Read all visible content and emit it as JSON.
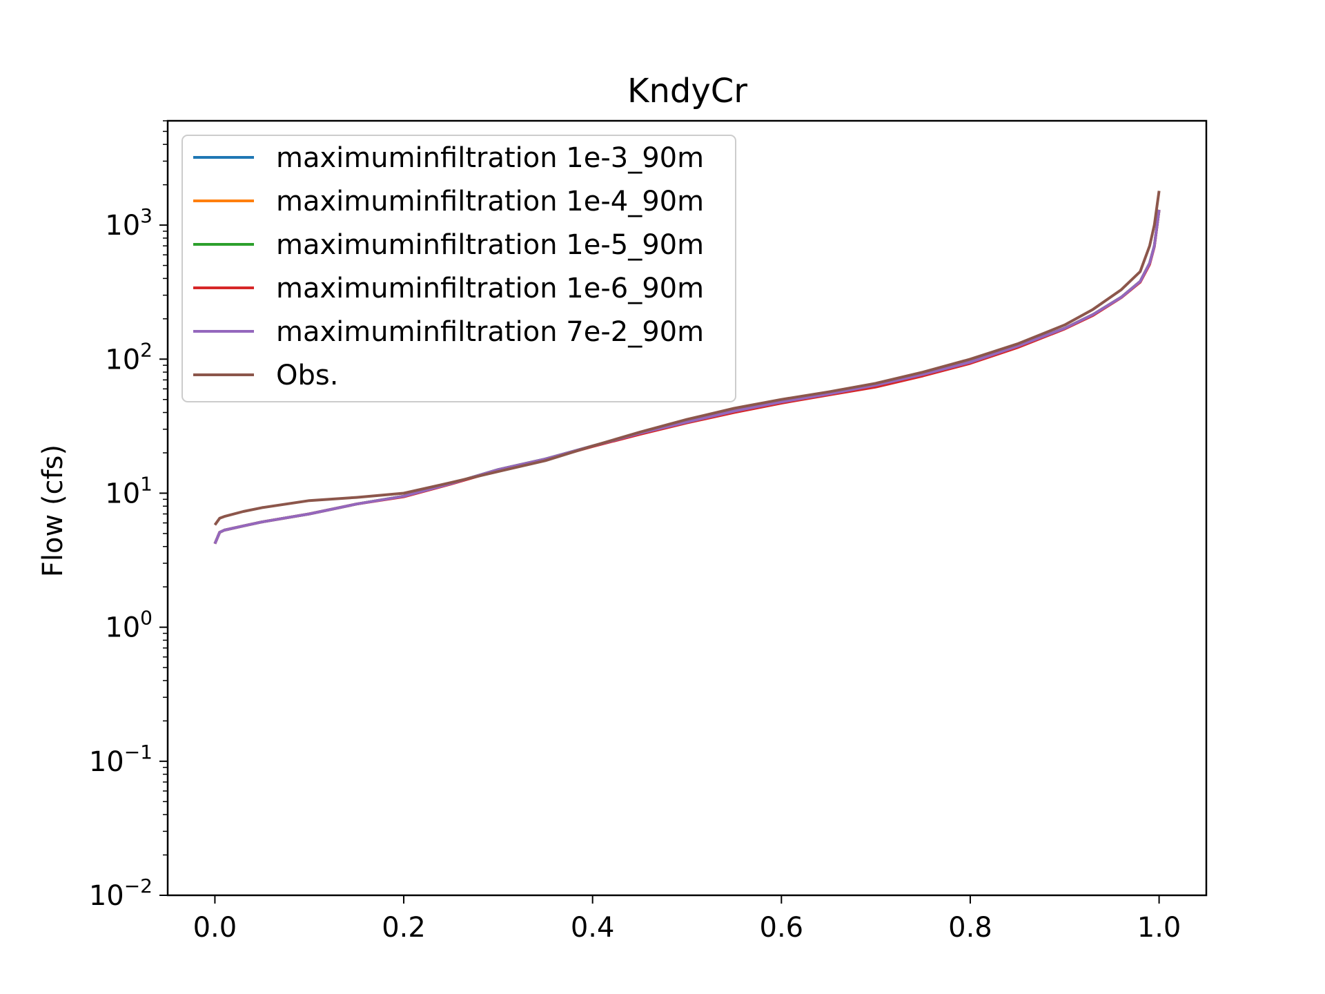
{
  "chart_data": {
    "type": "line",
    "title": "KndyCr",
    "xlabel": "",
    "ylabel": "Flow (cfs)",
    "yscale": "log",
    "xlim": [
      -0.05,
      1.05
    ],
    "ylim": [
      0.01,
      6000
    ],
    "xticks": [
      {
        "value": 0.0,
        "label": "0.0"
      },
      {
        "value": 0.2,
        "label": "0.2"
      },
      {
        "value": 0.4,
        "label": "0.4"
      },
      {
        "value": 0.6,
        "label": "0.6"
      },
      {
        "value": 0.8,
        "label": "0.8"
      },
      {
        "value": 1.0,
        "label": "1.0"
      }
    ],
    "yticks": [
      {
        "value": 0.01,
        "base": "10",
        "exp": "−2"
      },
      {
        "value": 0.1,
        "base": "10",
        "exp": "−1"
      },
      {
        "value": 1,
        "base": "10",
        "exp": "0"
      },
      {
        "value": 10,
        "base": "10",
        "exp": "1"
      },
      {
        "value": 100,
        "base": "10",
        "exp": "2"
      },
      {
        "value": 1000,
        "base": "10",
        "exp": "3"
      }
    ],
    "grid": false,
    "legend_position": "upper-left",
    "series": [
      {
        "name": "maximuminfiltration 1e-3_90m",
        "color": "#1f77b4",
        "x": [
          0,
          0.005,
          0.01,
          0.03,
          0.05,
          0.1,
          0.15,
          0.2,
          0.25,
          0.3,
          0.35,
          0.4,
          0.45,
          0.5,
          0.55,
          0.6,
          0.65,
          0.7,
          0.75,
          0.8,
          0.85,
          0.9,
          0.93,
          0.96,
          0.98,
          0.99,
          0.995,
          1.0
        ],
        "y": [
          4.2,
          5.1,
          5.3,
          5.7,
          6.1,
          7.0,
          8.3,
          9.5,
          11.8,
          15.0,
          18.0,
          22.5,
          28.0,
          34.0,
          41.0,
          48.0,
          55.0,
          64.0,
          77.0,
          95.0,
          125.0,
          170.0,
          215.0,
          290.0,
          380.0,
          520.0,
          700.0,
          1300.0
        ]
      },
      {
        "name": "maximuminfiltration 1e-4_90m",
        "color": "#ff7f0e",
        "x": [
          0,
          0.005,
          0.01,
          0.03,
          0.05,
          0.1,
          0.15,
          0.2,
          0.25,
          0.3,
          0.35,
          0.4,
          0.45,
          0.5,
          0.55,
          0.6,
          0.65,
          0.7,
          0.75,
          0.8,
          0.85,
          0.9,
          0.93,
          0.96,
          0.98,
          0.99,
          0.995,
          1.0
        ],
        "y": [
          4.2,
          5.1,
          5.3,
          5.7,
          6.1,
          7.0,
          8.3,
          9.5,
          11.8,
          15.0,
          18.0,
          22.5,
          28.0,
          34.0,
          41.0,
          48.0,
          55.0,
          64.0,
          77.0,
          95.0,
          125.0,
          170.0,
          215.0,
          290.0,
          380.0,
          520.0,
          700.0,
          1300.0
        ]
      },
      {
        "name": "maximuminfiltration 1e-5_90m",
        "color": "#2ca02c",
        "x": [
          0,
          0.005,
          0.01,
          0.03,
          0.05,
          0.1,
          0.15,
          0.2,
          0.25,
          0.3,
          0.35,
          0.4,
          0.45,
          0.5,
          0.55,
          0.6,
          0.65,
          0.7,
          0.75,
          0.8,
          0.85,
          0.9,
          0.93,
          0.96,
          0.98,
          0.99,
          0.995,
          1.0
        ],
        "y": [
          4.2,
          5.1,
          5.3,
          5.7,
          6.1,
          7.0,
          8.3,
          9.5,
          11.8,
          15.0,
          18.0,
          22.5,
          28.0,
          34.0,
          41.0,
          48.0,
          55.0,
          64.0,
          77.0,
          95.0,
          125.0,
          170.0,
          215.0,
          290.0,
          380.0,
          520.0,
          700.0,
          1300.0
        ]
      },
      {
        "name": "maximuminfiltration 1e-6_90m",
        "color": "#d62728",
        "x": [
          0,
          0.005,
          0.01,
          0.03,
          0.05,
          0.1,
          0.15,
          0.2,
          0.25,
          0.3,
          0.35,
          0.4,
          0.45,
          0.5,
          0.55,
          0.6,
          0.65,
          0.7,
          0.75,
          0.8,
          0.85,
          0.9,
          0.93,
          0.96,
          0.98,
          0.99,
          0.995,
          1.0
        ],
        "y": [
          4.2,
          5.1,
          5.3,
          5.7,
          6.1,
          7.0,
          8.3,
          9.4,
          11.7,
          14.8,
          17.8,
          22.3,
          27.5,
          33.5,
          40.0,
          47.0,
          54.0,
          62.0,
          75.0,
          93.0,
          122.0,
          168.0,
          212.0,
          288.0,
          375.0,
          510.0,
          690.0,
          1300.0
        ]
      },
      {
        "name": "maximuminfiltration 7e-2_90m",
        "color": "#9467bd",
        "x": [
          0,
          0.005,
          0.01,
          0.03,
          0.05,
          0.1,
          0.15,
          0.2,
          0.25,
          0.3,
          0.35,
          0.4,
          0.45,
          0.5,
          0.55,
          0.6,
          0.65,
          0.7,
          0.75,
          0.8,
          0.85,
          0.9,
          0.93,
          0.96,
          0.98,
          0.99,
          0.995,
          1.0
        ],
        "y": [
          4.2,
          5.1,
          5.3,
          5.7,
          6.1,
          7.0,
          8.3,
          9.5,
          11.8,
          15.0,
          18.0,
          22.5,
          28.0,
          34.0,
          41.0,
          48.0,
          55.0,
          64.0,
          77.0,
          95.0,
          125.0,
          170.0,
          215.0,
          290.0,
          380.0,
          520.0,
          700.0,
          1300.0
        ]
      },
      {
        "name": "Obs.",
        "color": "#8c564b",
        "x": [
          0,
          0.005,
          0.01,
          0.03,
          0.05,
          0.1,
          0.15,
          0.2,
          0.25,
          0.3,
          0.35,
          0.4,
          0.45,
          0.5,
          0.55,
          0.6,
          0.65,
          0.7,
          0.75,
          0.8,
          0.85,
          0.9,
          0.93,
          0.96,
          0.98,
          0.99,
          0.995,
          1.0
        ],
        "y": [
          5.8,
          6.5,
          6.7,
          7.3,
          7.8,
          8.8,
          9.3,
          10.0,
          12.0,
          14.5,
          17.5,
          22.5,
          28.5,
          35.5,
          43.0,
          50.0,
          57.0,
          66.0,
          80.0,
          100.0,
          130.0,
          180.0,
          235.0,
          330.0,
          450.0,
          700.0,
          1000.0,
          1800.0
        ]
      }
    ]
  }
}
